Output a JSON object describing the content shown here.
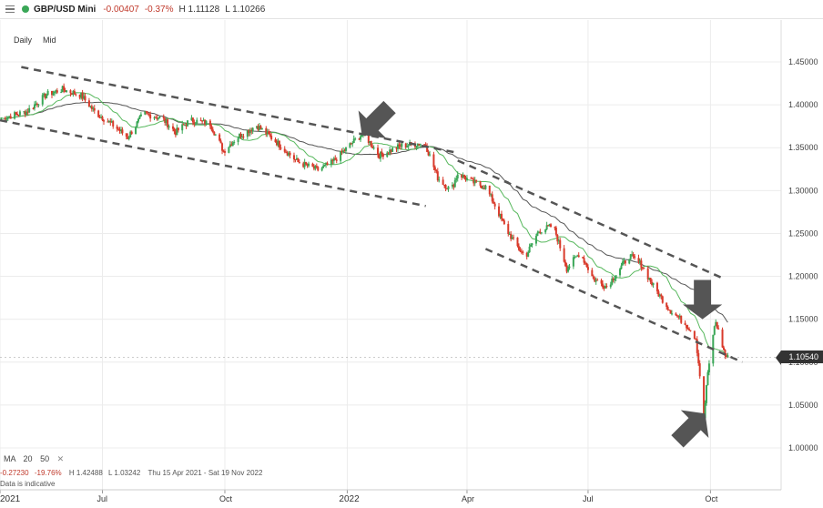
{
  "header": {
    "symbol": "GBP/USD Mini",
    "change": "-0.00407",
    "change_pct": "-0.37%",
    "high": "H 1.11128",
    "low": "L 1.10266"
  },
  "timeframe": {
    "daily": "Daily",
    "mid": "Mid"
  },
  "current_price_label": "1.10540",
  "indicator": {
    "ma": "MA",
    "p1": "20",
    "p2": "50",
    "close": "✕"
  },
  "stats": {
    "change": "-0.27230",
    "change_pct": "-19.76%",
    "high": "H 1.42488",
    "low": "L 1.03242",
    "range": "Thu 15 Apr 2021 - Sat 19 Nov 2022"
  },
  "note": "Data is indicative",
  "colors": {
    "up": "#3aa757",
    "down": "#d93a2b",
    "ma20": "#57b85d",
    "ma50": "#555555",
    "channel": "#555555",
    "arrow": "#555555"
  },
  "chart_data": {
    "type": "candlestick",
    "ylim": [
      0.97,
      1.49
    ],
    "y_ticks": [
      "1.45000",
      "1.40000",
      "1.35000",
      "1.30000",
      "1.25000",
      "1.20000",
      "1.15000",
      "1.10000",
      "1.05000",
      "1.00000"
    ],
    "y_tick_values": [
      1.45,
      1.4,
      1.35,
      1.3,
      1.25,
      1.2,
      1.15,
      1.1,
      1.05,
      1.0
    ],
    "x_labels": [
      "2021",
      "Jul",
      "Oct",
      "2022",
      "Apr",
      "Jul",
      "Oct"
    ],
    "x_label_dates": [
      "2021-04-15",
      "2021-07-01",
      "2021-10-01",
      "2022-01-01",
      "2022-04-01",
      "2022-07-01",
      "2022-10-01"
    ],
    "x_range_dates": [
      "2021-04-15",
      "2022-11-19"
    ],
    "close_path": [
      [
        "2021-04-15",
        1.384
      ],
      [
        "2021-05-05",
        1.392
      ],
      [
        "2021-05-20",
        1.412
      ],
      [
        "2021-06-01",
        1.418
      ],
      [
        "2021-06-15",
        1.411
      ],
      [
        "2021-06-25",
        1.392
      ],
      [
        "2021-07-10",
        1.375
      ],
      [
        "2021-07-20",
        1.362
      ],
      [
        "2021-08-01",
        1.39
      ],
      [
        "2021-08-15",
        1.384
      ],
      [
        "2021-08-25",
        1.368
      ],
      [
        "2021-09-05",
        1.382
      ],
      [
        "2021-09-20",
        1.378
      ],
      [
        "2021-09-30",
        1.346
      ],
      [
        "2021-10-10",
        1.362
      ],
      [
        "2021-10-25",
        1.376
      ],
      [
        "2021-11-10",
        1.355
      ],
      [
        "2021-11-25",
        1.333
      ],
      [
        "2021-12-10",
        1.324
      ],
      [
        "2021-12-20",
        1.332
      ],
      [
        "2022-01-05",
        1.356
      ],
      [
        "2022-01-13",
        1.367
      ],
      [
        "2022-01-25",
        1.341
      ],
      [
        "2022-02-10",
        1.352
      ],
      [
        "2022-02-25",
        1.355
      ],
      [
        "2022-03-01",
        1.353
      ],
      [
        "2022-03-10",
        1.315
      ],
      [
        "2022-03-20",
        1.3
      ],
      [
        "2022-03-25",
        1.32
      ],
      [
        "2022-04-05",
        1.31
      ],
      [
        "2022-04-15",
        1.304
      ],
      [
        "2022-04-22",
        1.283
      ],
      [
        "2022-04-30",
        1.256
      ],
      [
        "2022-05-10",
        1.232
      ],
      [
        "2022-05-15",
        1.223
      ],
      [
        "2022-05-25",
        1.253
      ],
      [
        "2022-06-05",
        1.259
      ],
      [
        "2022-06-15",
        1.209
      ],
      [
        "2022-06-25",
        1.228
      ],
      [
        "2022-07-05",
        1.197
      ],
      [
        "2022-07-15",
        1.188
      ],
      [
        "2022-08-01",
        1.224
      ],
      [
        "2022-08-10",
        1.214
      ],
      [
        "2022-08-20",
        1.186
      ],
      [
        "2022-09-01",
        1.16
      ],
      [
        "2022-09-07",
        1.152
      ],
      [
        "2022-09-15",
        1.14
      ],
      [
        "2022-09-20",
        1.128
      ],
      [
        "2022-09-23",
        1.085
      ],
      [
        "2022-09-26",
        1.032
      ],
      [
        "2022-09-28",
        1.073
      ],
      [
        "2022-10-03",
        1.133
      ],
      [
        "2022-10-05",
        1.147
      ],
      [
        "2022-10-12",
        1.108
      ],
      [
        "2022-10-14",
        1.105
      ]
    ],
    "channels": [
      {
        "name": "",
        "upper": [
          [
            "2021-05-01",
            1.444
          ],
          [
            "2022-03-25",
            1.344
          ]
        ],
        "lower": [
          [
            "2021-04-15",
            1.382
          ],
          [
            "2022-03-01",
            1.282
          ]
        ]
      },
      {
        "name": "",
        "upper": [
          [
            "2022-03-25",
            1.335
          ],
          [
            "2022-10-10",
            1.198
          ]
        ],
        "lower": [
          [
            "2022-04-15",
            1.232
          ],
          [
            "2022-10-25",
            1.1
          ]
        ]
      }
    ],
    "annotations": [
      {
        "type": "arrow",
        "direction": "down-left",
        "at": [
          "2022-01-12",
          1.365
        ]
      },
      {
        "type": "arrow",
        "direction": "down",
        "at": [
          "2022-09-25",
          1.15
        ]
      },
      {
        "type": "arrow",
        "direction": "up-right",
        "at": [
          "2022-09-27",
          1.04
        ]
      }
    ],
    "legend": {
      "ma_periods": [
        20,
        50
      ]
    }
  }
}
